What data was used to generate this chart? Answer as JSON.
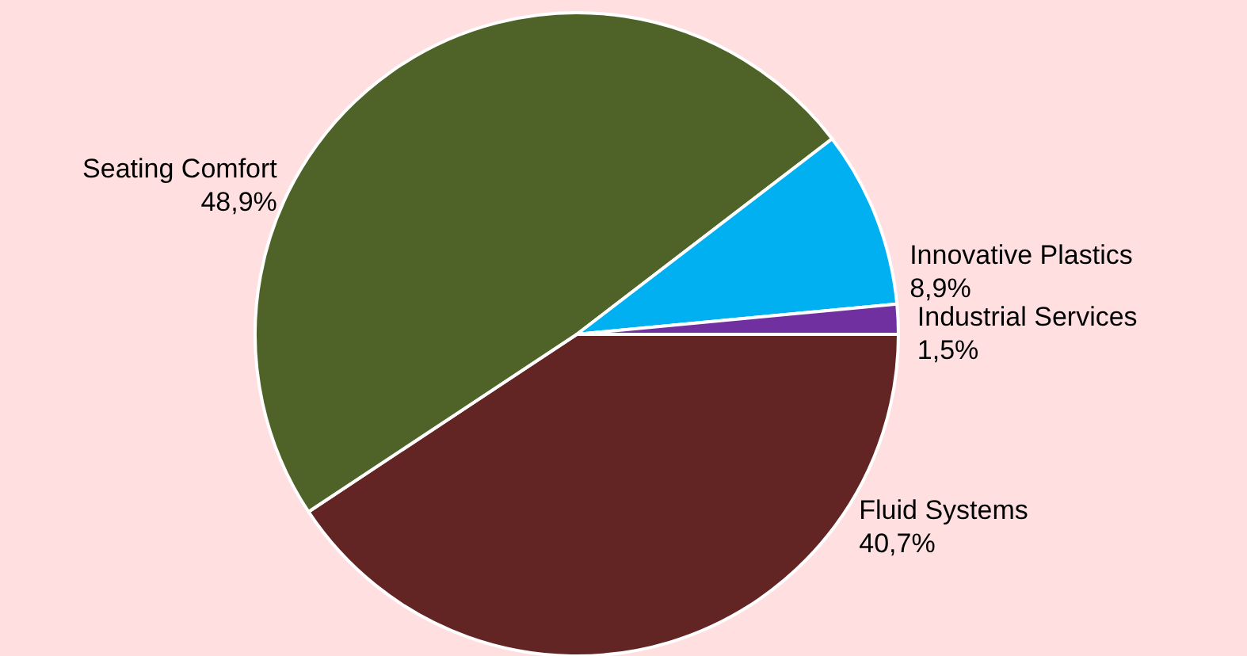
{
  "chart_data": {
    "type": "pie",
    "categories": [
      "Fluid Systems",
      "Seating Comfort",
      "Innovative Plastics",
      "Industrial Services"
    ],
    "values": [
      40.7,
      48.9,
      8.9,
      1.5
    ],
    "colors": [
      "#632523",
      "#4f6228",
      "#00b0f0",
      "#7030a0"
    ],
    "value_labels": [
      "40,7%",
      "48,9%",
      "8,9%",
      "1,5%"
    ]
  }
}
